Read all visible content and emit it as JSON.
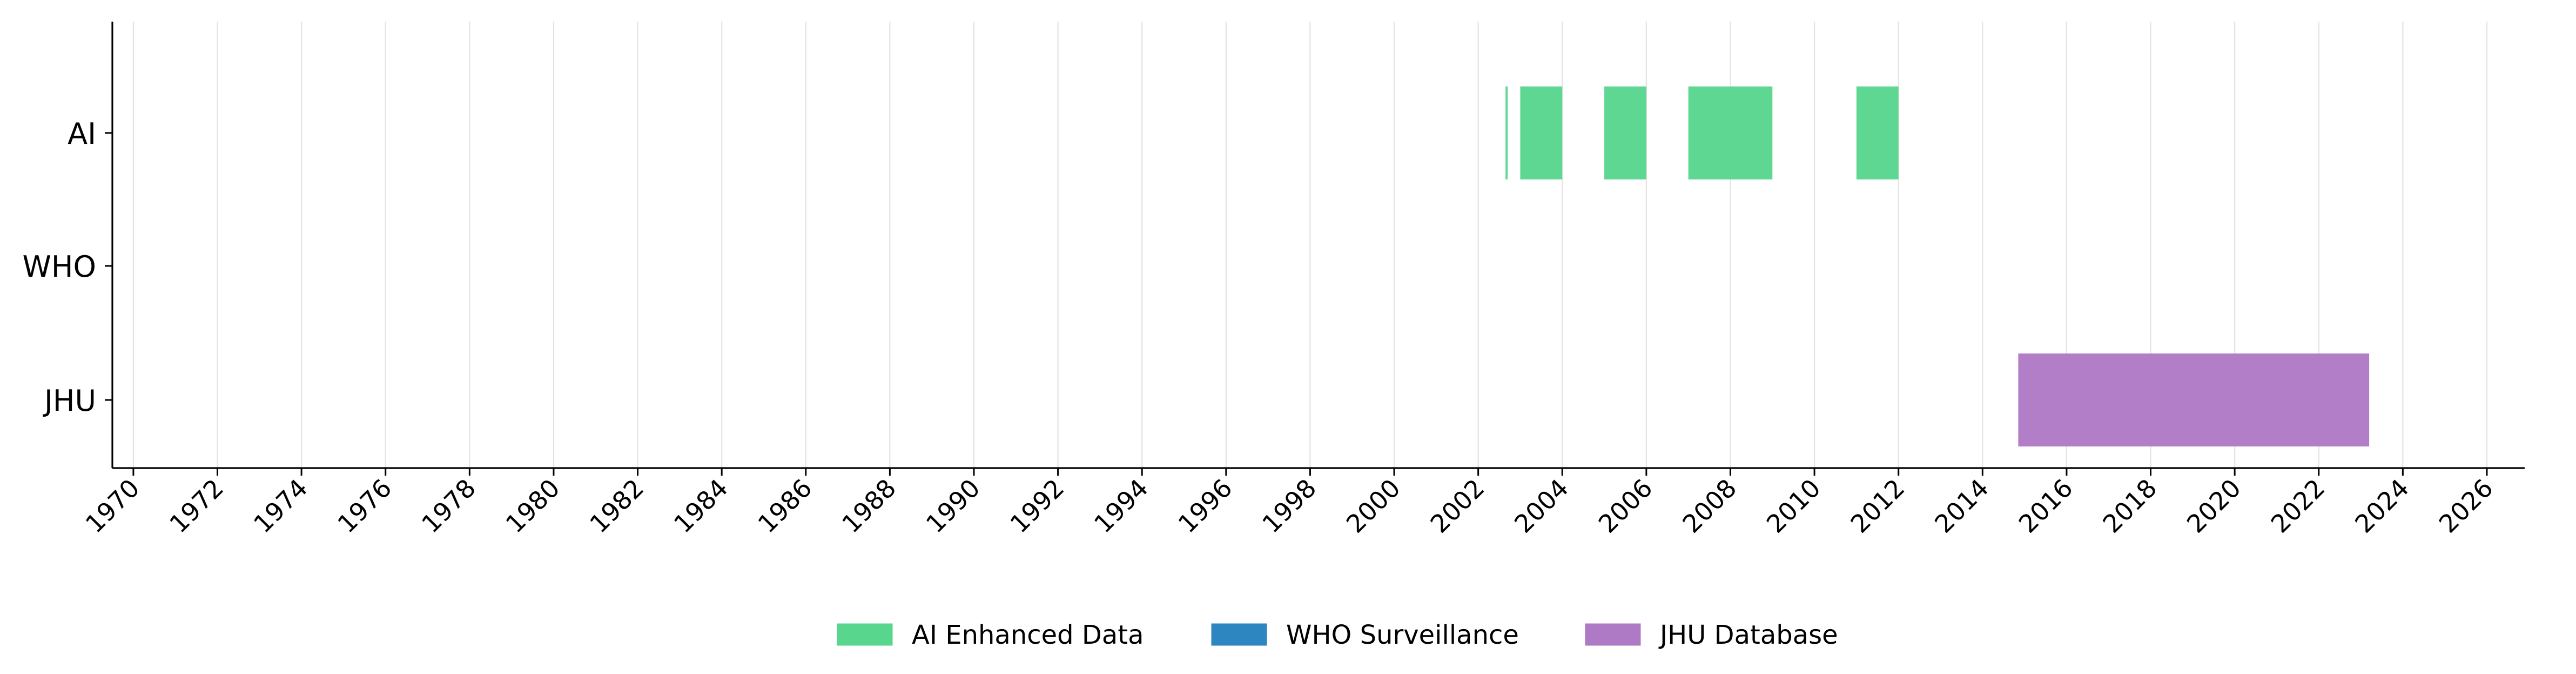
{
  "chart_data": {
    "type": "timeline",
    "title": "",
    "xlabel": "",
    "ylabel": "",
    "xlim": [
      1969.5,
      2026.9
    ],
    "x_ticks": [
      1970,
      1972,
      1974,
      1976,
      1978,
      1980,
      1982,
      1984,
      1986,
      1988,
      1990,
      1992,
      1994,
      1996,
      1998,
      2000,
      2002,
      2004,
      2006,
      2008,
      2010,
      2012,
      2014,
      2016,
      2018,
      2020,
      2022,
      2024,
      2026
    ],
    "rows": [
      "AI",
      "WHO",
      "JHU"
    ],
    "grid": "vertical",
    "legend_position": "bottom-center",
    "series": [
      {
        "name": "AI Enhanced Data",
        "row": "AI",
        "color": "#58d68d",
        "intervals": [
          [
            2002.65,
            2002.7
          ],
          [
            2003.0,
            2004.0
          ],
          [
            2005.0,
            2006.0
          ],
          [
            2007.0,
            2009.0
          ],
          [
            2011.0,
            2012.0
          ]
        ]
      },
      {
        "name": "WHO Surveillance",
        "row": "WHO",
        "color": "#2e86c1",
        "intervals": []
      },
      {
        "name": "JHU Database",
        "row": "JHU",
        "color": "#af7ac5",
        "intervals": [
          [
            2014.85,
            2023.2
          ]
        ]
      }
    ]
  }
}
